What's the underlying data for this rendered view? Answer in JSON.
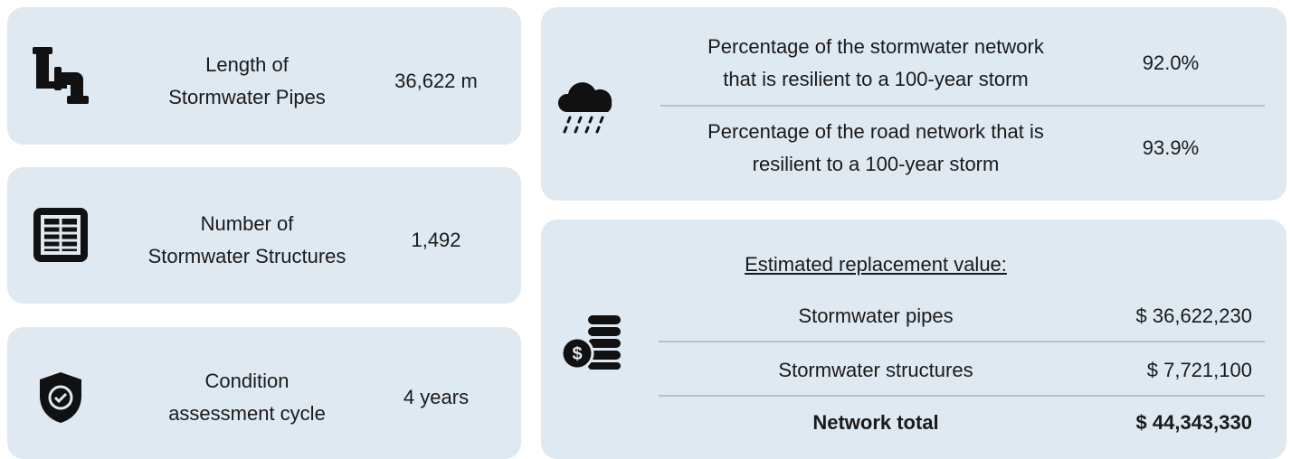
{
  "left_cards": [
    {
      "label_lines": [
        "Length of",
        "Stormwater Pipes"
      ],
      "value": "36,622 m"
    },
    {
      "label_lines": [
        "Number of",
        "Stormwater Structures"
      ],
      "value": "1,492"
    },
    {
      "label_lines": [
        "Condition",
        "assessment cycle"
      ],
      "value": "4 years"
    }
  ],
  "resilience": {
    "rows": [
      {
        "label_lines": [
          "Percentage of the stormwater network",
          "that is resilient to a 100-year storm"
        ],
        "value": "92.0%"
      },
      {
        "label_lines": [
          "Percentage of the road network that is",
          "resilient to a 100-year storm"
        ],
        "value": "93.9%"
      }
    ]
  },
  "replacement": {
    "heading": "Estimated replacement value:",
    "rows": [
      {
        "label": "Stormwater pipes",
        "value": "$ 36,622,230"
      },
      {
        "label": "Stormwater structures",
        "value": "$ 7,721,100"
      }
    ],
    "total": {
      "label": "Network total",
      "value": "$ 44,343,330"
    }
  }
}
